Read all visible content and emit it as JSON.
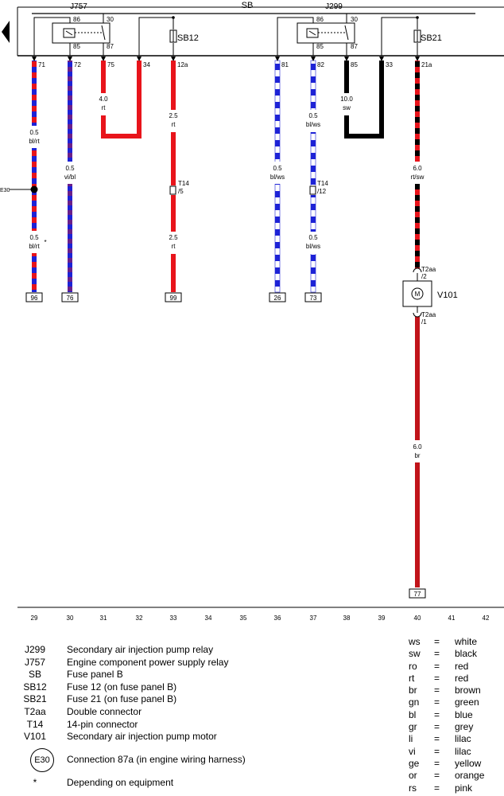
{
  "header": {
    "bus_label": "SB",
    "relay_left": "J757",
    "relay_right": "J299"
  },
  "relay_pins": {
    "left": [
      "86",
      "30",
      "85",
      "87"
    ],
    "right": [
      "86",
      "30",
      "85",
      "87"
    ]
  },
  "fuses": {
    "left": "SB12",
    "right": "SB21"
  },
  "terminals": [
    "71",
    "72",
    "75",
    "34",
    "12a",
    "81",
    "82",
    "85",
    "33",
    "21a"
  ],
  "wire_labels": [
    {
      "size": "0.5",
      "color": "bl/rt"
    },
    {
      "size": "0.5",
      "color": "bl/rt",
      "note": "*"
    },
    {
      "size": "0.5",
      "color": "vi/bl"
    },
    {
      "size": "4.0",
      "color": "rt"
    },
    {
      "size": "2.5",
      "color": "rt"
    },
    {
      "size": "2.5",
      "color": "rt"
    },
    {
      "size": "0.5",
      "color": "bl/ws"
    },
    {
      "size": "0.5",
      "color": "bl/ws"
    },
    {
      "size": "0.5",
      "color": "bl/ws"
    },
    {
      "size": "10.0",
      "color": "sw"
    },
    {
      "size": "6.0",
      "color": "rt/sw"
    },
    {
      "size": "6.0",
      "color": "br"
    }
  ],
  "connectors": [
    {
      "name": "T14",
      "pin": "/5"
    },
    {
      "name": "T14",
      "pin": "/12"
    },
    {
      "name": "T2aa",
      "pin": "/2"
    },
    {
      "name": "T2aa",
      "pin": "/1"
    }
  ],
  "connection_point": "E30",
  "motor_symbol": "M",
  "motor": "V101",
  "ground_boxes": [
    "96",
    "76",
    "99",
    "26",
    "73",
    "77"
  ],
  "tracks": [
    "29",
    "30",
    "31",
    "32",
    "33",
    "34",
    "35",
    "36",
    "37",
    "38",
    "39",
    "40",
    "41",
    "42"
  ],
  "legend": [
    {
      "code": "J299",
      "desc": "Secondary air injection pump relay"
    },
    {
      "code": "J757",
      "desc": "Engine component power supply relay"
    },
    {
      "code": "SB",
      "desc": "Fuse panel B"
    },
    {
      "code": "SB12",
      "desc": "Fuse 12 (on fuse panel B)"
    },
    {
      "code": "SB21",
      "desc": "Fuse 21 (on fuse panel B)"
    },
    {
      "code": "T2aa",
      "desc": "Double connector"
    },
    {
      "code": "T14",
      "desc": "14-pin connector"
    },
    {
      "code": "V101",
      "desc": "Secondary air injection pump motor"
    }
  ],
  "legend_connection": {
    "code": "E30",
    "desc": "Connection 87a (in engine wiring harness)"
  },
  "legend_note": {
    "symbol": "*",
    "desc": "Depending on equipment"
  },
  "color_codes": [
    {
      "abbr": "ws",
      "name": "white"
    },
    {
      "abbr": "sw",
      "name": "black"
    },
    {
      "abbr": "ro",
      "name": "red"
    },
    {
      "abbr": "rt",
      "name": "red"
    },
    {
      "abbr": "br",
      "name": "brown"
    },
    {
      "abbr": "gn",
      "name": "green"
    },
    {
      "abbr": "bl",
      "name": "blue"
    },
    {
      "abbr": "gr",
      "name": "grey"
    },
    {
      "abbr": "li",
      "name": "lilac"
    },
    {
      "abbr": "vi",
      "name": "lilac"
    },
    {
      "abbr": "ge",
      "name": "yellow"
    },
    {
      "abbr": "or",
      "name": "orange"
    },
    {
      "abbr": "rs",
      "name": "pink"
    }
  ],
  "colors": {
    "red": "#e8141b",
    "blue": "#1d22d6",
    "black": "#000000",
    "white": "#ffffff",
    "purple": "#6a1f8a"
  }
}
